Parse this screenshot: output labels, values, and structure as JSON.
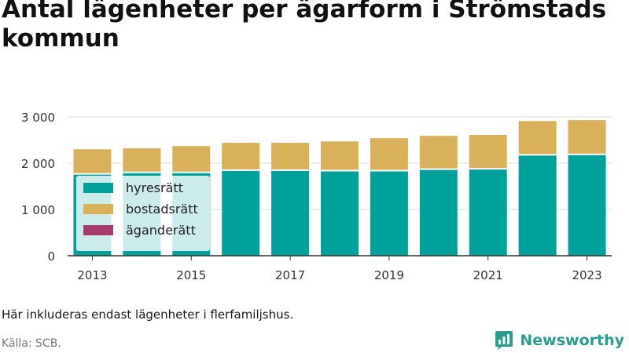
{
  "title": "Antal lägenheter per ägarform i Strömstads kommun",
  "note": "Här inkluderas endast lägenheter i flerfamiljshus.",
  "source": "Källa: SCB.",
  "brand": "Newsworthy",
  "colors": {
    "hyresratt": "#00a19a",
    "bostadsratt": "#d9b15a",
    "aganderatt": "#a63c6e",
    "grid": "#dddddd",
    "axis": "#333333",
    "brand": "#2a9d8f"
  },
  "chart_data": {
    "type": "bar",
    "stacked": true,
    "categories": [
      "2013",
      "2014",
      "2015",
      "2016",
      "2017",
      "2018",
      "2019",
      "2020",
      "2021",
      "2022",
      "2023"
    ],
    "x_tick_labels": [
      "2013",
      "2015",
      "2017",
      "2019",
      "2021",
      "2023"
    ],
    "y_ticks": [
      0,
      1000,
      2000,
      3000
    ],
    "y_tick_labels": [
      "0",
      "1 000",
      "2 000",
      "3 000"
    ],
    "ylim": [
      0,
      3150
    ],
    "grid": true,
    "legend_position": "left",
    "series": [
      {
        "name": "hyresrätt",
        "color": "#00a19a",
        "values": [
          1770,
          1800,
          1800,
          1850,
          1850,
          1840,
          1840,
          1870,
          1880,
          2180,
          2190
        ]
      },
      {
        "name": "bostadsrätt",
        "color": "#d9b15a",
        "values": [
          530,
          520,
          570,
          590,
          590,
          630,
          700,
          720,
          730,
          730,
          740
        ]
      },
      {
        "name": "äganderätt",
        "color": "#a63c6e",
        "values": [
          0,
          0,
          0,
          0,
          0,
          0,
          0,
          0,
          0,
          0,
          0
        ]
      }
    ]
  }
}
